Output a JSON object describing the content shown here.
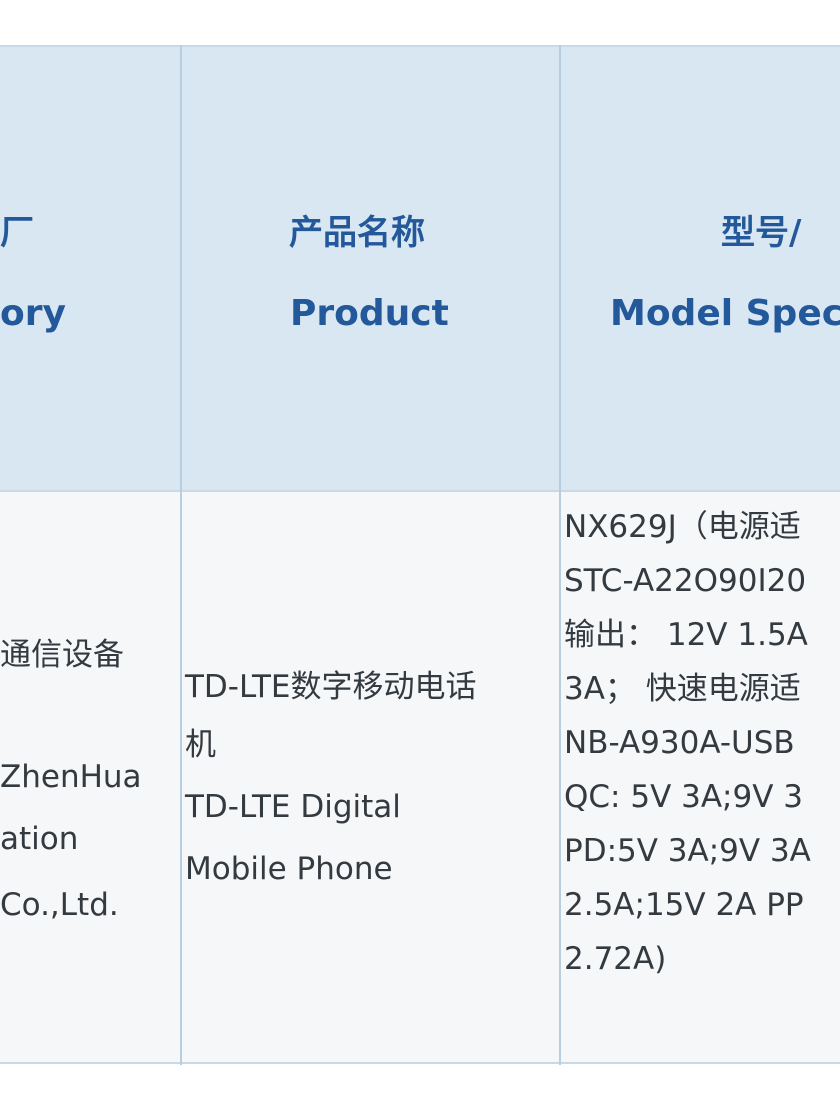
{
  "header": {
    "col1_cn": "厂",
    "col1_en": "ory",
    "col2_cn": "产品名称",
    "col2_en": "Product",
    "col3_cn": "型号/",
    "col3_en": "Model Spec"
  },
  "row": {
    "manufacturer": [
      "通信设备",
      "ZhenHua",
      "ation",
      "Co.,Ltd."
    ],
    "product": [
      "TD-LTE数字移动电话",
      "机",
      "TD-LTE Digital",
      "Mobile Phone"
    ],
    "model": [
      "NX629J（电源适",
      "STC-A22O90I20",
      "输出： 12V 1.5A",
      "3A； 快速电源适",
      "NB-A930A-USB",
      "QC: 5V 3A;9V 3",
      "PD:5V 3A;9V 3A",
      "2.5A;15V 2A PP",
      "2.72A)"
    ]
  },
  "colors": {
    "header_bg": "#d9e7f2",
    "header_text": "#23589a",
    "body_bg": "#f6f7f9",
    "body_text": "#333a40"
  }
}
